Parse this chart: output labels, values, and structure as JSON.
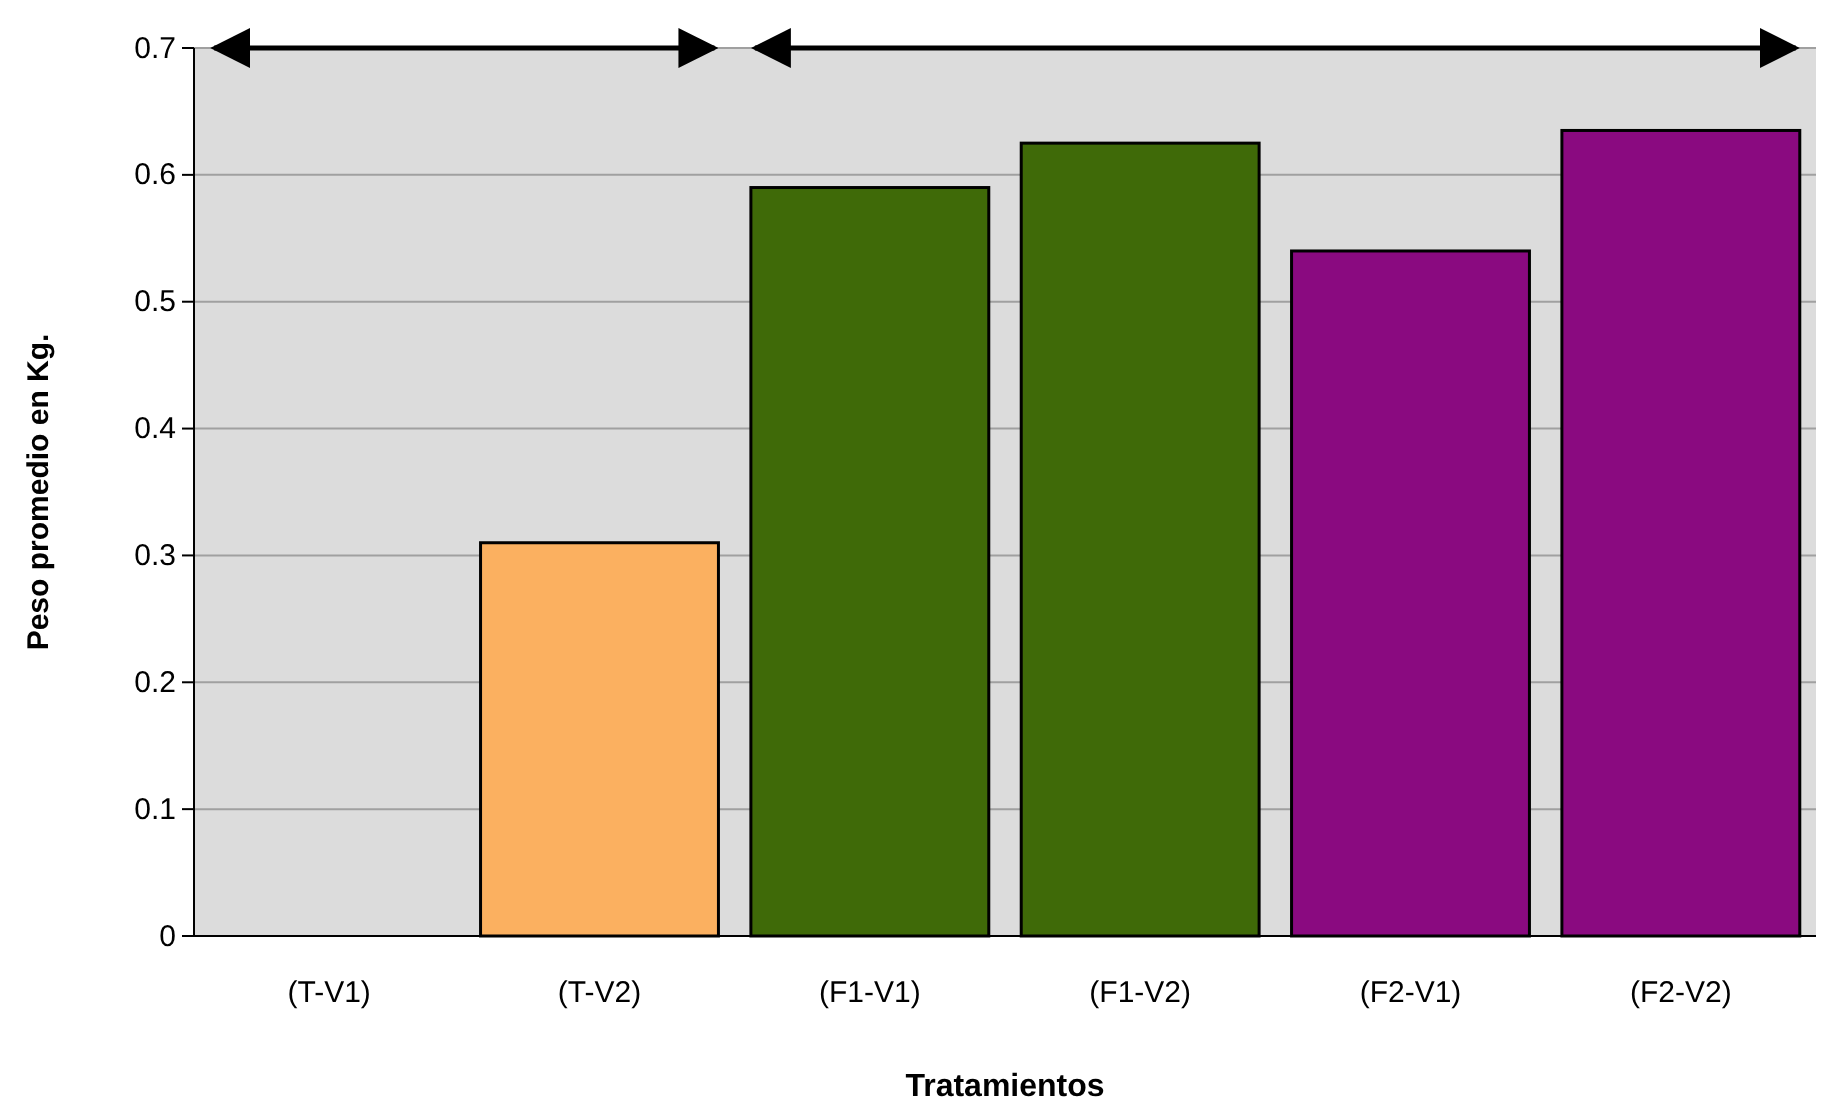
{
  "chart_data": {
    "type": "bar",
    "xlabel": "Tratamientos",
    "ylabel": "Peso promedio en Kg.",
    "categories": [
      "(T-V1)",
      "(T-V2)",
      "(F1-V1)",
      "(F1-V2)",
      "(F2-V1)",
      "(F2-V2)"
    ],
    "values": [
      0,
      0.31,
      0.59,
      0.625,
      0.54,
      0.635
    ],
    "colors": [
      "#fbb060",
      "#fbb060",
      "#3f6a08",
      "#3f6a08",
      "#8a0a80",
      "#8a0a80"
    ],
    "ylim": [
      0,
      0.7
    ],
    "yticks": [
      0,
      0.1,
      0.2,
      0.3,
      0.4,
      0.5,
      0.6,
      0.7
    ],
    "grid": "y"
  }
}
